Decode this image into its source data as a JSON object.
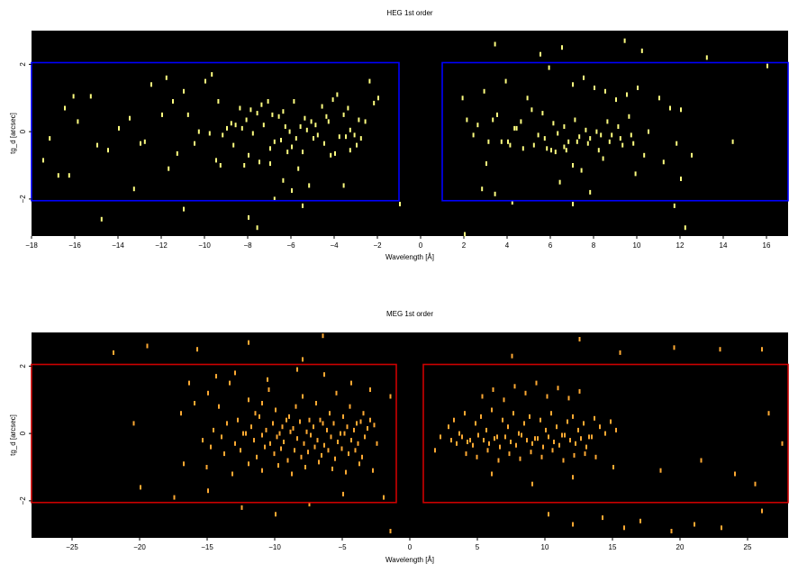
{
  "chart_data": [
    {
      "type": "scatter",
      "title": "HEG 1st order",
      "xlabel": "Wavelength [Å]",
      "ylabel": "tg_d [arcsec]",
      "xlim": [
        -18,
        17
      ],
      "ylim": [
        -3.1,
        3.0
      ],
      "xticks": [
        -18,
        -16,
        -14,
        -12,
        -10,
        -8,
        -6,
        -4,
        -2,
        0,
        2,
        4,
        6,
        8,
        10,
        12,
        14,
        16
      ],
      "xtick_labels": [
        "−18",
        "−16",
        "−14",
        "−12",
        "−10",
        "−8",
        "−6",
        "−4",
        "−2",
        "0",
        "2",
        "4",
        "6",
        "8",
        "10",
        "12",
        "14",
        "16"
      ],
      "yticks": [
        -2,
        0,
        2
      ],
      "ytick_labels": [
        "−2",
        "0",
        "2"
      ],
      "background": "#000000",
      "point_color": "#ffff80",
      "region_color": "#0000ff",
      "grid": false,
      "regions": [
        {
          "x": [
            -18,
            -1.0
          ],
          "y": [
            -2.05,
            2.05
          ]
        },
        {
          "x": [
            1.0,
            17
          ],
          "y": [
            -2.05,
            2.05
          ]
        }
      ],
      "series": [
        {
          "x": [
            -16.1,
            -15.3,
            -16.5,
            -15.9,
            -14.0,
            -13.0,
            -11.8,
            -11.0,
            -10.0,
            -9.4,
            -8.4,
            -7.9,
            -7.4,
            -6.9,
            -6.4,
            -5.9,
            -5.4,
            -4.9,
            -4.4,
            -3.9,
            -3.4,
            -2.9,
            -2.4,
            -2.0,
            -12.5,
            -11.5,
            -10.8,
            -9.7,
            -9.0,
            -8.6,
            -8.1,
            -7.6,
            -7.1,
            -6.6,
            -6.1,
            -5.6,
            -5.1,
            -4.6,
            -4.1,
            -3.6,
            -3.1,
            -2.6,
            -2.2,
            -13.5,
            -12.0,
            -10.3,
            -9.2,
            -8.8,
            -8.3,
            -7.8,
            -7.3,
            -6.8,
            -6.3,
            -5.8,
            -5.3,
            -4.8,
            -4.3,
            -3.8,
            -3.3,
            -2.8,
            -14.5,
            -12.8,
            -10.5,
            -9.8,
            -8.7,
            -8.0,
            -7.5,
            -7.0,
            -6.5,
            -6.0,
            -5.5,
            -5.0,
            -4.5,
            -4.0,
            -3.5,
            -3.0,
            -17.2,
            -15.0,
            -11.3,
            -9.5,
            -8.2,
            -7.0,
            -6.2,
            -5.7,
            -4.2,
            -3.3,
            -16.3,
            -13.3,
            -11.7,
            -9.3,
            -6.4,
            -6.0,
            -5.2,
            -17.5,
            -16.8,
            -14.8,
            -11.0,
            -8.0,
            -7.6,
            -6.8,
            -5.5,
            -3.6,
            -1.0,
            1.9,
            2.9,
            3.9,
            4.9,
            5.9,
            6.5,
            7.0,
            7.5,
            8.0,
            8.5,
            9.0,
            9.5,
            10.0,
            11.0,
            11.5,
            12.0,
            2.1,
            2.6,
            3.3,
            3.5,
            4.3,
            4.6,
            5.1,
            5.6,
            6.1,
            6.6,
            7.1,
            7.6,
            8.1,
            8.6,
            9.1,
            9.6,
            10.5,
            11.8,
            2.4,
            3.1,
            4.1,
            4.4,
            5.4,
            5.7,
            6.3,
            6.8,
            7.3,
            7.8,
            8.3,
            8.8,
            9.3,
            9.8,
            12.5,
            14.4,
            3.7,
            4.7,
            5.2,
            5.8,
            6.2,
            6.7,
            7.2,
            7.7,
            8.2,
            8.7,
            9.2,
            9.7,
            10.3,
            11.2,
            3.0,
            4.0,
            6.0,
            6.6,
            7.0,
            7.4,
            8.4,
            9.9,
            12.0,
            2.8,
            3.4,
            4.2,
            5.5,
            6.4,
            7.8,
            9.4,
            10.2,
            11.7,
            13.2,
            16.0,
            2.0,
            3.4,
            7.0,
            12.2
          ],
          "y": [
            1.05,
            1.05,
            0.7,
            0.3,
            0.1,
            -0.35,
            1.6,
            1.2,
            1.5,
            0.9,
            0.7,
            0.65,
            0.8,
            0.5,
            0.6,
            0.9,
            0.4,
            0.2,
            0.45,
            1.1,
            0.7,
            0.35,
            1.5,
            1.0,
            1.4,
            0.9,
            0.5,
            1.7,
            0.1,
            0.2,
            0.35,
            0.55,
            0.9,
            0.45,
            0.0,
            0.15,
            0.3,
            0.75,
            0.95,
            0.5,
            -0.1,
            0.3,
            0.85,
            0.4,
            0.5,
            0.0,
            -0.1,
            0.25,
            0.1,
            -0.05,
            0.2,
            -0.3,
            0.15,
            -0.2,
            0.05,
            -0.1,
            0.3,
            -0.15,
            0.05,
            -0.2,
            -0.55,
            -0.3,
            -0.35,
            -0.05,
            -0.4,
            -0.7,
            -0.9,
            -0.5,
            -0.25,
            -0.45,
            -0.6,
            -0.2,
            -0.35,
            -0.65,
            -0.15,
            -0.4,
            -0.2,
            -0.4,
            -0.65,
            -0.85,
            -1.0,
            -0.95,
            -0.6,
            -1.1,
            -0.7,
            -0.55,
            -1.3,
            -1.7,
            -1.1,
            -1.0,
            -1.45,
            -1.75,
            -1.6,
            -0.85,
            -1.3,
            -2.6,
            -2.3,
            -2.55,
            -2.85,
            -2.0,
            -2.2,
            -1.6,
            -2.15,
            1.0,
            1.2,
            1.5,
            1.0,
            1.9,
            2.5,
            1.4,
            1.6,
            1.3,
            1.2,
            0.95,
            1.1,
            1.3,
            1.0,
            0.7,
            0.65,
            0.35,
            0.2,
            0.35,
            0.5,
            0.1,
            0.3,
            0.65,
            0.55,
            0.25,
            0.15,
            0.35,
            0.05,
            0.0,
            0.3,
            0.15,
            0.45,
            0.0,
            -0.35,
            -0.1,
            -0.3,
            -0.4,
            0.1,
            -0.1,
            -0.2,
            -0.05,
            -0.3,
            -0.15,
            -0.2,
            -0.1,
            -0.1,
            -0.4,
            -0.35,
            -0.7,
            -0.3,
            -0.3,
            -0.5,
            -0.4,
            -0.5,
            -0.6,
            -0.55,
            -0.3,
            -0.35,
            -0.55,
            -0.3,
            -0.2,
            -0.1,
            -0.7,
            -0.9,
            -0.95,
            -0.3,
            -0.55,
            -0.45,
            -1.0,
            -1.15,
            -0.8,
            -1.25,
            -1.4,
            -1.7,
            -1.85,
            -2.1,
            2.3,
            -1.5,
            -1.8,
            2.7,
            2.4,
            -2.2,
            2.2,
            1.95,
            -3.05,
            2.6,
            -2.15,
            -2.85
          ]
        }
      ]
    },
    {
      "type": "scatter",
      "title": "MEG 1st order",
      "xlabel": "Wavelength [Å]",
      "ylabel": "tg_d [arcsec]",
      "xlim": [
        -28,
        28
      ],
      "ylim": [
        -3.1,
        3.0
      ],
      "xticks": [
        -25,
        -20,
        -15,
        -10,
        -5,
        0,
        5,
        10,
        15,
        20,
        25
      ],
      "xtick_labels": [
        "−25",
        "−20",
        "−15",
        "−10",
        "−5",
        "0",
        "5",
        "10",
        "15",
        "20",
        "25"
      ],
      "yticks": [
        -2,
        0,
        2
      ],
      "ytick_labels": [
        "−2",
        "0",
        "2"
      ],
      "background": "#000000",
      "point_color": "#ffaa33",
      "region_color": "#cc0000",
      "grid": false,
      "regions": [
        {
          "x": [
            -28,
            -1.0
          ],
          "y": [
            -2.05,
            2.05
          ]
        },
        {
          "x": [
            1.0,
            28
          ],
          "y": [
            -2.05,
            2.05
          ]
        }
      ],
      "series": [
        {
          "x": [
            -20.5,
            -17.0,
            -16.0,
            -15.0,
            -14.2,
            -13.4,
            -12.8,
            -12.0,
            -11.5,
            -11.0,
            -10.5,
            -10.0,
            -9.5,
            -9.0,
            -8.5,
            -8.0,
            -7.5,
            -7.0,
            -6.5,
            -6.0,
            -5.5,
            -5.0,
            -4.5,
            -4.0,
            -3.5,
            -3.0,
            -14.6,
            -13.6,
            -12.4,
            -11.8,
            -11.2,
            -10.7,
            -10.2,
            -9.7,
            -9.2,
            -8.7,
            -8.2,
            -7.7,
            -7.2,
            -6.7,
            -6.2,
            -5.7,
            -5.2,
            -4.7,
            -4.2,
            -3.7,
            -3.2,
            -2.7,
            -15.4,
            -14.0,
            -13.0,
            -12.2,
            -11.6,
            -11.0,
            -10.4,
            -9.9,
            -9.4,
            -8.9,
            -8.4,
            -7.9,
            -7.4,
            -6.9,
            -6.4,
            -5.9,
            -5.4,
            -4.9,
            -4.4,
            -3.9,
            -3.4,
            -14.8,
            -13.8,
            -12.6,
            -11.4,
            -10.8,
            -10.1,
            -9.6,
            -9.1,
            -8.6,
            -8.1,
            -7.6,
            -7.1,
            -6.6,
            -6.1,
            -5.6,
            -5.1,
            -4.6,
            -4.1,
            -3.6,
            -2.5,
            -16.8,
            -15.1,
            -13.2,
            -12.0,
            -11.0,
            -9.8,
            -8.8,
            -7.8,
            -6.8,
            -5.8,
            -4.8,
            -3.8,
            -2.8,
            -16.4,
            -14.4,
            -13.0,
            -10.6,
            -8.4,
            -6.4,
            -4.4,
            -3.0,
            -1.5,
            -20.0,
            -17.5,
            -15.0,
            -12.5,
            -10.0,
            -7.5,
            -5.0,
            -2.0,
            -22.0,
            -19.5,
            -15.8,
            -12.0,
            -8.0,
            -6.5,
            -1.5,
            2.2,
            2.8,
            3.2,
            3.6,
            4.0,
            4.4,
            4.8,
            5.2,
            5.6,
            6.0,
            6.4,
            6.8,
            7.2,
            7.6,
            8.0,
            8.4,
            8.8,
            9.2,
            9.6,
            10.0,
            10.4,
            10.8,
            11.2,
            11.6,
            12.0,
            12.4,
            12.8,
            13.2,
            13.6,
            14.0,
            14.4,
            14.8,
            15.2,
            3.0,
            3.4,
            3.8,
            4.2,
            4.6,
            5.0,
            5.4,
            5.8,
            6.2,
            6.6,
            7.0,
            7.4,
            7.8,
            8.2,
            8.6,
            9.0,
            9.4,
            9.8,
            10.2,
            10.6,
            11.0,
            11.4,
            11.8,
            12.2,
            12.6,
            13.0,
            13.4,
            4.1,
            4.9,
            5.7,
            6.5,
            7.3,
            8.1,
            8.9,
            9.7,
            10.5,
            11.3,
            12.1,
            12.9,
            13.7,
            5.3,
            6.1,
            6.9,
            7.7,
            8.5,
            9.3,
            10.1,
            10.9,
            11.7,
            12.5,
            1.8,
            6.0,
            9.0,
            12.0,
            15.0,
            18.5,
            21.5,
            24.0,
            25.5,
            26.5,
            27.5,
            10.2,
            12.0,
            14.2,
            15.8,
            17.0,
            19.3,
            21.0,
            23.0,
            26.0,
            7.5,
            12.5,
            15.5,
            19.5,
            22.9,
            26.0
          ],
          "y": [
            0.3,
            0.6,
            0.9,
            1.2,
            0.8,
            1.5,
            0.4,
            1.0,
            0.6,
            0.9,
            1.3,
            0.7,
            0.2,
            0.5,
            0.8,
            1.1,
            0.4,
            0.9,
            0.3,
            0.6,
            1.2,
            0.5,
            0.8,
            0.3,
            0.6,
            0.4,
            0.1,
            0.3,
            0.0,
            0.2,
            0.5,
            0.1,
            0.3,
            0.0,
            0.4,
            0.15,
            0.35,
            0.05,
            0.2,
            0.4,
            0.1,
            0.3,
            0.0,
            0.2,
            0.1,
            0.35,
            0.15,
            0.25,
            -0.2,
            -0.1,
            -0.3,
            0.0,
            -0.2,
            -0.05,
            -0.3,
            -0.1,
            -0.25,
            0.05,
            -0.15,
            -0.3,
            -0.05,
            -0.2,
            -0.35,
            -0.1,
            -0.25,
            0.0,
            -0.2,
            -0.3,
            -0.1,
            -0.4,
            -0.6,
            -0.5,
            -0.7,
            -0.4,
            -0.6,
            -0.45,
            -0.8,
            -0.5,
            -0.7,
            -0.55,
            -0.4,
            -0.65,
            -0.5,
            -0.75,
            -0.45,
            -0.6,
            -0.5,
            -0.7,
            -0.3,
            -0.9,
            -1.0,
            -1.2,
            -0.9,
            -1.1,
            -0.95,
            -1.2,
            -1.0,
            -0.85,
            -1.05,
            -1.15,
            -0.9,
            -1.1,
            1.5,
            1.7,
            1.8,
            1.6,
            1.9,
            1.75,
            1.5,
            1.3,
            1.1,
            -1.6,
            -1.9,
            -1.7,
            -2.2,
            -2.4,
            -2.1,
            -1.8,
            -1.9,
            2.4,
            2.6,
            2.5,
            2.7,
            2.2,
            2.9,
            -2.9,
            -0.1,
            0.2,
            0.4,
            0.0,
            0.6,
            -0.2,
            0.3,
            0.5,
            0.1,
            0.7,
            -0.1,
            0.4,
            0.2,
            0.6,
            0.0,
            0.3,
            0.5,
            -0.15,
            0.4,
            0.1,
            0.6,
            0.2,
            -0.05,
            0.35,
            0.5,
            0.1,
            0.3,
            -0.1,
            0.45,
            0.2,
            0.0,
            0.35,
            0.1,
            -0.2,
            -0.3,
            -0.1,
            -0.25,
            -0.35,
            -0.05,
            -0.2,
            -0.3,
            -0.15,
            -0.4,
            -0.1,
            -0.25,
            -0.35,
            -0.05,
            -0.2,
            -0.3,
            -0.15,
            -0.4,
            -0.1,
            -0.25,
            -0.35,
            -0.05,
            -0.2,
            -0.3,
            -0.15,
            -0.4,
            -0.1,
            -0.6,
            -0.7,
            -0.5,
            -0.8,
            -0.6,
            -0.75,
            -0.55,
            -0.7,
            -0.5,
            -0.8,
            -0.65,
            -0.6,
            -0.7,
            1.1,
            1.3,
            1.0,
            1.4,
            1.2,
            1.5,
            1.1,
            1.35,
            1.05,
            1.25,
            -0.5,
            -1.2,
            -1.5,
            -1.3,
            -1.0,
            -1.1,
            -0.8,
            -1.2,
            -1.5,
            0.6,
            -0.3,
            -2.4,
            -2.7,
            -2.5,
            -2.8,
            -2.6,
            -2.9,
            -2.7,
            -2.8,
            -2.3,
            2.3,
            2.8,
            2.4,
            2.55,
            2.5,
            2.5
          ]
        }
      ]
    }
  ]
}
